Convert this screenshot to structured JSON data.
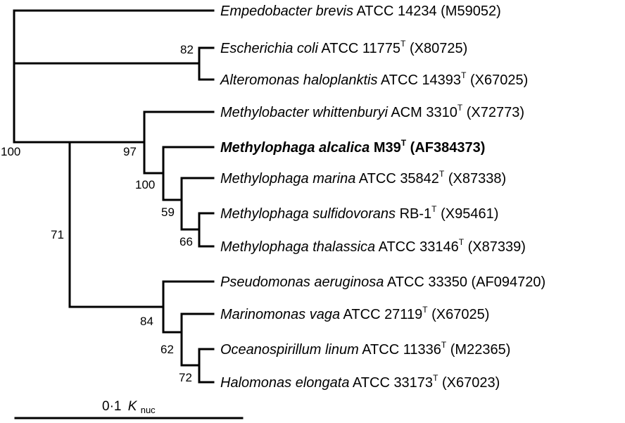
{
  "taxa": [
    {
      "id": "empedobacter",
      "genus_species": "Empedobacter brevis",
      "strain": " ATCC 14234",
      "type_strain": "",
      "accession": " (M59052)",
      "bold": false
    },
    {
      "id": "escherichia",
      "genus_species": "Escherichia coli",
      "strain": " ATCC 11775",
      "type_strain": "T",
      "accession": " (X80725)",
      "bold": false
    },
    {
      "id": "alteromonas",
      "genus_species": "Alteromonas haloplanktis",
      "strain": " ATCC 14393",
      "type_strain": "T",
      "accession": " (X67025)",
      "bold": false
    },
    {
      "id": "methylobacter",
      "genus_species": "Methylobacter whittenburyi",
      "strain": " ACM 3310",
      "type_strain": "T",
      "accession": " (X72773)",
      "bold": false
    },
    {
      "id": "alcalica",
      "genus_species": "Methylophaga alcalica",
      "strain": " M39",
      "type_strain": "T",
      "accession": " (AF384373)",
      "bold": true
    },
    {
      "id": "marina",
      "genus_species": "Methylophaga marina",
      "strain": " ATCC 35842",
      "type_strain": "T",
      "accession": " (X87338)",
      "bold": false
    },
    {
      "id": "sulfidovorans",
      "genus_species": "Methylophaga sulfidovorans",
      "strain": " RB-1",
      "type_strain": "T",
      "accession": " (X95461)",
      "bold": false
    },
    {
      "id": "thalassica",
      "genus_species": "Methylophaga thalassica",
      "strain": " ATCC 33146",
      "type_strain": "T",
      "accession": " (X87339)",
      "bold": false
    },
    {
      "id": "pseudomonas",
      "genus_species": "Pseudomonas aeruginosa",
      "strain": " ATCC 33350",
      "type_strain": "",
      "accession": " (AF094720)",
      "bold": false
    },
    {
      "id": "marinomonas",
      "genus_species": "Marinomonas vaga",
      "strain": " ATCC 27119",
      "type_strain": "T",
      "accession": " (X67025)",
      "bold": false
    },
    {
      "id": "oceanospirillum",
      "genus_species": "Oceanospirillum linum",
      "strain": " ATCC 11336",
      "type_strain": "T",
      "accession": " (M22365)",
      "bold": false
    },
    {
      "id": "halomonas",
      "genus_species": "Halomonas elongata",
      "strain": " ATCC 33173",
      "type_strain": "T",
      "accession": " (X67023)",
      "bold": false
    }
  ],
  "bootstrap": {
    "ecoli_altero": "82",
    "root": "100",
    "methylo_group": "97",
    "alcalica_group": "100",
    "marina_group": "59",
    "sulf_thal": "66",
    "gamma_group": "71",
    "pseudo_group": "84",
    "marino_group": "62",
    "oceano_halo": "72"
  },
  "scale": {
    "value": "0·1",
    "unit_main": "K",
    "unit_sub": "nuc"
  }
}
